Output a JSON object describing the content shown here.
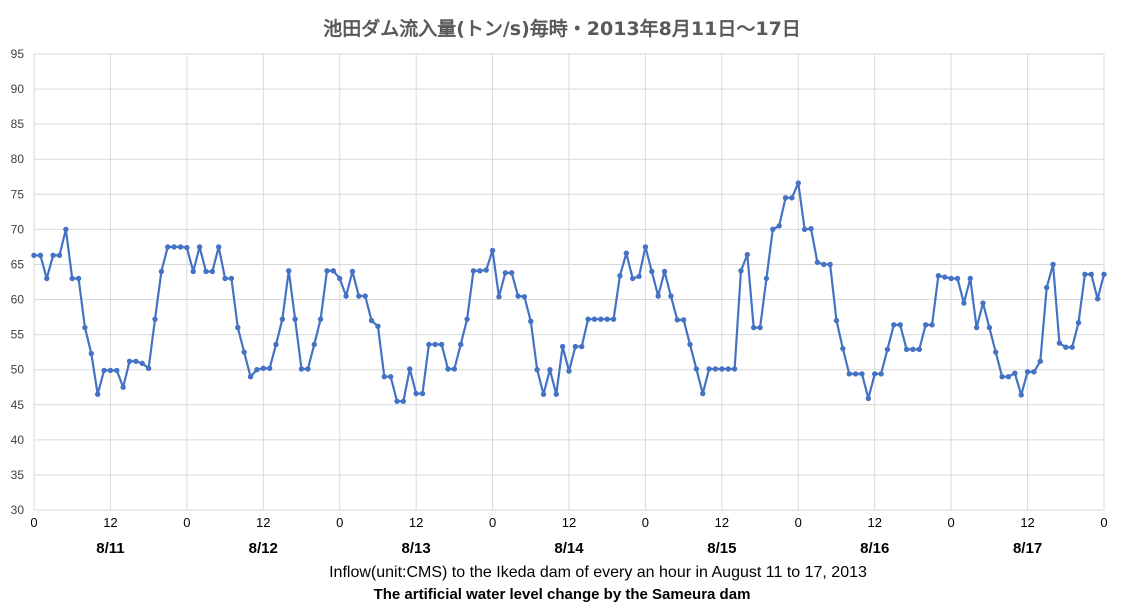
{
  "chart_data": {
    "type": "line",
    "title": "池田ダム流入量(トン/s)毎時・2013年8月11日～17日",
    "ylim": [
      30,
      95
    ],
    "yticks": [
      30,
      35,
      40,
      45,
      50,
      55,
      60,
      65,
      70,
      75,
      80,
      85,
      90,
      95
    ],
    "grid": true,
    "color": "#4472c4",
    "x_tick_labels": [
      "0",
      "12",
      "0",
      "12",
      "0",
      "12",
      "0",
      "12",
      "0",
      "12",
      "0",
      "12",
      "0",
      "12",
      "0"
    ],
    "date_labels": [
      "8/11",
      "8/12",
      "8/13",
      "8/14",
      "8/15",
      "8/16",
      "8/17"
    ],
    "x_range_hours": [
      0,
      168
    ],
    "caption": "Inflow(unit:CMS) to the Ikeda dam of every an hour in August 11 to 17, 2013",
    "subcaption": "The artificial water level change by the Sameura dam",
    "series": [
      {
        "values": [
          66.3,
          66.3,
          63.0,
          66.3,
          66.3,
          70.0,
          63.0,
          63.0,
          56.0,
          52.3,
          46.5,
          49.9,
          49.9,
          49.9,
          47.5,
          51.2,
          51.2,
          50.9,
          50.2,
          57.2,
          64.0,
          67.5,
          67.5,
          67.5,
          67.4,
          64.0,
          67.5,
          64.0,
          64.0,
          67.5,
          63.0,
          63.0,
          56.0,
          52.5,
          49.0,
          50.0,
          50.2,
          50.2,
          53.6,
          57.2,
          64.1,
          57.2,
          50.1,
          50.1,
          53.6,
          57.2,
          64.1,
          64.1,
          63.0,
          60.5,
          64.0,
          60.5,
          60.5,
          57.0,
          56.2,
          49.0,
          49.0,
          45.5,
          45.5,
          50.1,
          46.6,
          46.6,
          53.6,
          53.6,
          53.6,
          50.1,
          50.1,
          53.6,
          57.2,
          64.1,
          64.1,
          64.2,
          67.0,
          60.4,
          63.8,
          63.8,
          60.5,
          60.4,
          56.9,
          50.0,
          46.5,
          50.0,
          46.5,
          53.3,
          49.8,
          53.3,
          53.3,
          57.2,
          57.2,
          57.2,
          57.2,
          57.2,
          63.4,
          66.6,
          63.0,
          63.3,
          67.5,
          64.0,
          60.5,
          64.0,
          60.5,
          57.1,
          57.1,
          53.6,
          50.1,
          46.6,
          50.1,
          50.1,
          50.1,
          50.1,
          50.1,
          64.1,
          66.4,
          56.0,
          56.0,
          63.0,
          70.0,
          70.5,
          74.5,
          74.5,
          76.6,
          70.0,
          70.1,
          65.3,
          65.0,
          65.0,
          57.0,
          53.0,
          49.4,
          49.4,
          49.4,
          45.9,
          49.4,
          49.4,
          52.9,
          56.4,
          56.4,
          52.9,
          52.9,
          52.9,
          56.4,
          56.4,
          63.4,
          63.2,
          63.0,
          63.0,
          59.5,
          63.0,
          56.0,
          59.5,
          56.0,
          52.5,
          49.0,
          49.0,
          49.5,
          46.4,
          49.7,
          49.7,
          51.2,
          61.7,
          65.0,
          53.8,
          53.2,
          53.2,
          56.7,
          63.6,
          63.6,
          60.1,
          63.6
        ]
      }
    ]
  }
}
